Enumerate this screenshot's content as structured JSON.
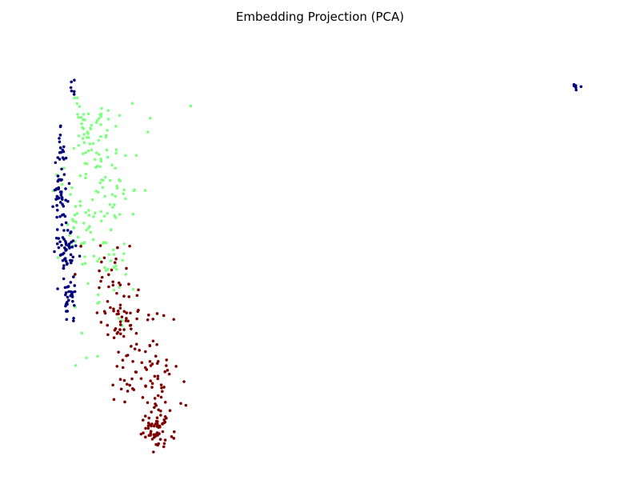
{
  "chart_data": {
    "type": "scatter",
    "title": "Embedding Projection (PCA)",
    "xlabel": "",
    "ylabel": "",
    "axes_visible": false,
    "grid": false,
    "legend": "none",
    "series": [
      {
        "color": "#7fff7f",
        "seed": 11,
        "clusters": [
          {
            "n": 45,
            "x": [
              0.11,
              0.02
            ],
            "y": [
              0.8,
              0.03
            ]
          },
          {
            "n": 45,
            "x": [
              0.12,
              0.03
            ],
            "y": [
              0.68,
              0.04
            ]
          },
          {
            "n": 45,
            "x": [
              0.11,
              0.025
            ],
            "y": [
              0.58,
              0.035
            ]
          },
          {
            "n": 30,
            "x": [
              0.12,
              0.03
            ],
            "y": [
              0.48,
              0.03
            ]
          },
          {
            "n": 10,
            "x": [
              0.14,
              0.03
            ],
            "y": [
              0.4,
              0.05
            ]
          },
          {
            "n": 5,
            "x": [
              0.2,
              0.04
            ],
            "y": [
              0.85,
              0.04
            ]
          },
          {
            "n": 5,
            "x": [
              0.1,
              0.03
            ],
            "y": [
              0.25,
              0.05
            ]
          }
        ]
      },
      {
        "color": "#00007f",
        "seed": 29,
        "clusters": [
          {
            "n": 30,
            "x": [
              0.07,
              0.006
            ],
            "y": [
              0.38,
              0.03
            ]
          },
          {
            "n": 50,
            "x": [
              0.065,
              0.008
            ],
            "y": [
              0.5,
              0.03
            ]
          },
          {
            "n": 45,
            "x": [
              0.055,
              0.006
            ],
            "y": [
              0.62,
              0.04
            ]
          },
          {
            "n": 15,
            "x": [
              0.06,
              0.005
            ],
            "y": [
              0.75,
              0.03
            ]
          },
          {
            "n": 6,
            "x": [
              0.075,
              0.003
            ],
            "y": [
              0.9,
              0.01
            ]
          },
          {
            "n": 6,
            "x": [
              0.94,
              0.004
            ],
            "y": [
              0.895,
              0.004
            ]
          }
        ]
      },
      {
        "color": "#7f0000",
        "seed": 47,
        "clusters": [
          {
            "n": 20,
            "x": [
              0.14,
              0.02
            ],
            "y": [
              0.45,
              0.03
            ]
          },
          {
            "n": 50,
            "x": [
              0.17,
              0.025
            ],
            "y": [
              0.33,
              0.035
            ]
          },
          {
            "n": 60,
            "x": [
              0.2,
              0.025
            ],
            "y": [
              0.2,
              0.045
            ]
          },
          {
            "n": 55,
            "x": [
              0.22,
              0.015
            ],
            "y": [
              0.05,
              0.02
            ]
          },
          {
            "n": 20,
            "x": [
              0.23,
              0.02
            ],
            "y": [
              0.12,
              0.03
            ]
          }
        ]
      }
    ]
  }
}
